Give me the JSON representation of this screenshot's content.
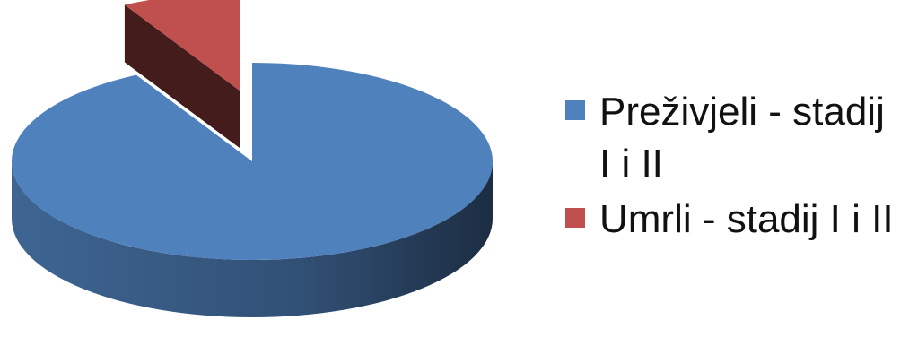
{
  "chart_data": {
    "type": "pie",
    "style": "3d-exploded",
    "slices": [
      {
        "label": "Preživjeli - stadij I i II",
        "value": 92,
        "color": "#4f81bd"
      },
      {
        "label": "Umrli - stadij I i II",
        "value": 8,
        "color": "#c0504d"
      }
    ],
    "legend_position": "right",
    "title": ""
  }
}
